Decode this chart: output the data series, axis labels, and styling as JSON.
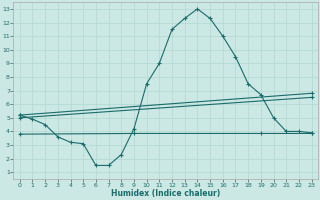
{
  "xlabel": "Humidex (Indice chaleur)",
  "bg_color": "#cce8e4",
  "line_color": "#1a6b6b",
  "grid_color": "#b0d8d0",
  "xlim": [
    -0.5,
    23.5
  ],
  "ylim": [
    0.5,
    13.5
  ],
  "xticks": [
    0,
    1,
    2,
    3,
    4,
    5,
    6,
    7,
    8,
    9,
    10,
    11,
    12,
    13,
    14,
    15,
    16,
    17,
    18,
    19,
    20,
    21,
    22,
    23
  ],
  "yticks": [
    1,
    2,
    3,
    4,
    5,
    6,
    7,
    8,
    9,
    10,
    11,
    12,
    13
  ],
  "line1_x": [
    0,
    1,
    2,
    3,
    4,
    5,
    6,
    7,
    8,
    9,
    10,
    11,
    12,
    13,
    14,
    15,
    16,
    17,
    18,
    19,
    20,
    21,
    22,
    23
  ],
  "line1_y": [
    5.2,
    4.9,
    4.5,
    3.6,
    3.2,
    3.1,
    1.5,
    1.5,
    2.3,
    4.2,
    7.5,
    9.0,
    11.5,
    12.3,
    13.0,
    12.3,
    11.0,
    9.5,
    7.5,
    6.7,
    5.0,
    4.0,
    4.0,
    3.9
  ],
  "line2_x": [
    0,
    23
  ],
  "line2_y": [
    5.2,
    6.8
  ],
  "line3_x": [
    0,
    23
  ],
  "line3_y": [
    5.0,
    6.5
  ],
  "line4_x": [
    0,
    9,
    19,
    23
  ],
  "line4_y": [
    3.8,
    3.85,
    3.85,
    3.85
  ]
}
